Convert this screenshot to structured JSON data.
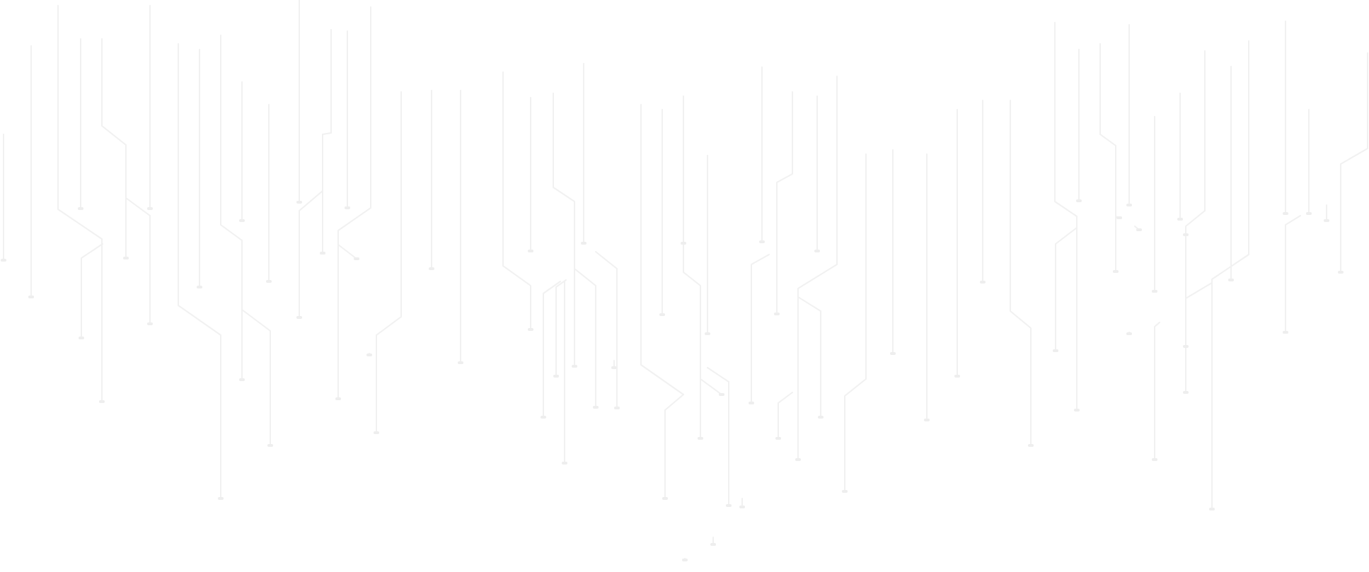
{
  "background": {
    "name": "circuit-board-line-pattern",
    "page_color": "#ffffff",
    "line_color": "#f1f1f1",
    "pad_color": "#eeeeee"
  }
}
